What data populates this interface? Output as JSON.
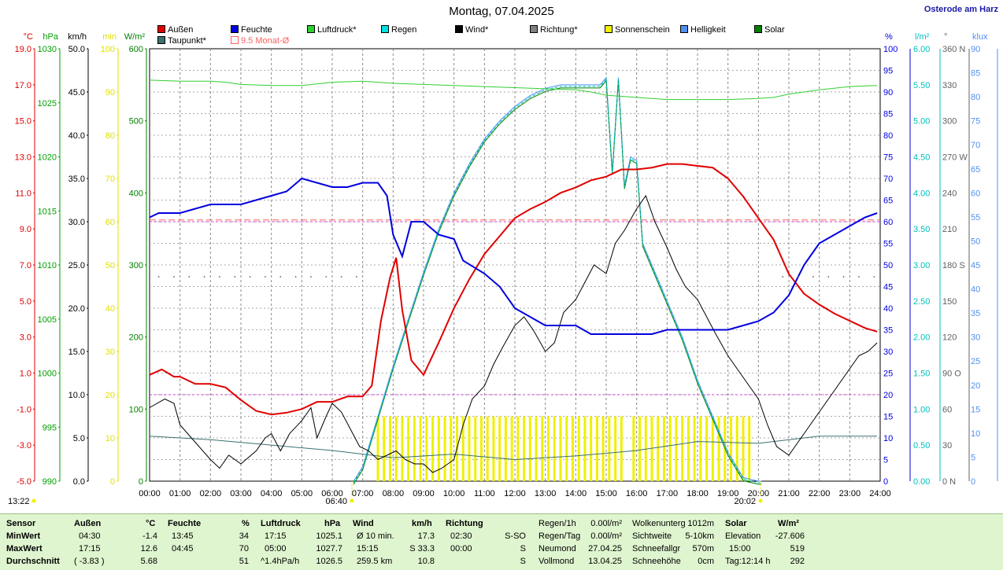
{
  "title": "Montag, 07.04.2025",
  "location": "Osterode am Harz",
  "legend": [
    {
      "label": "Außen",
      "color": "#e00000"
    },
    {
      "label": "Taupunkt*",
      "color": "#3b7070"
    },
    {
      "label": "Feuchte",
      "color": "#0000e0"
    },
    {
      "label": "9.5 Monat-Ø",
      "color": "#ff6060",
      "hollow": true
    },
    {
      "label": "Luftdruck*",
      "color": "#30d030"
    },
    {
      "label": "Regen",
      "color": "#00e0e0"
    },
    {
      "label": "Wind*",
      "color": "#000000"
    },
    {
      "label": "Richtung*",
      "color": "#808080"
    },
    {
      "label": "Sonnenschein",
      "color": "#f0f000"
    },
    {
      "label": "Helligkeit",
      "color": "#5090f0"
    },
    {
      "label": "Solar",
      "color": "#008000"
    }
  ],
  "axes_left": [
    {
      "unit": "°C",
      "color": "#e00000",
      "ticks": [
        "19.0",
        "17.0",
        "15.0",
        "13.0",
        "11.0",
        "9.0",
        "7.0",
        "5.0",
        "3.0",
        "1.0",
        "-1.0",
        "-3.0",
        "-5.0"
      ]
    },
    {
      "unit": "hPa",
      "color": "#00a000",
      "ticks": [
        "1030",
        "1025",
        "1020",
        "1015",
        "1010",
        "1005",
        "1000",
        "995",
        "990"
      ]
    },
    {
      "unit": "km/h",
      "color": "#000000",
      "ticks": [
        "50.0",
        "45.0",
        "40.0",
        "35.0",
        "30.0",
        "25.0",
        "20.0",
        "15.0",
        "10.0",
        "5.0",
        "0.0"
      ]
    },
    {
      "unit": "min",
      "color": "#e0e000",
      "ticks": [
        "100",
        "90",
        "80",
        "70",
        "60",
        "50",
        "40",
        "30",
        "20",
        "10",
        "0"
      ]
    },
    {
      "unit": "W/m²",
      "color": "#008000",
      "ticks": [
        "600",
        "500",
        "400",
        "300",
        "200",
        "100",
        "0"
      ]
    }
  ],
  "axes_right": [
    {
      "unit": "%",
      "color": "#0000e0",
      "ticks": [
        "100",
        "95",
        "90",
        "85",
        "80",
        "75",
        "70",
        "65",
        "60",
        "55",
        "50",
        "45",
        "40",
        "35",
        "30",
        "25",
        "20",
        "15",
        "10",
        "5",
        "0"
      ]
    },
    {
      "unit": "l/m²",
      "color": "#00c0c0",
      "ticks": [
        "6.00",
        "5.50",
        "5.00",
        "4.50",
        "4.00",
        "3.50",
        "3.00",
        "2.50",
        "2.00",
        "1.50",
        "1.00",
        "0.50",
        "0.00"
      ]
    },
    {
      "unit": "°",
      "color": "#606060",
      "ticks": [
        "360 N",
        "330",
        "300",
        "270 W",
        "240",
        "210",
        "180 S",
        "150",
        "120",
        "90 O",
        "60",
        "30",
        "0 N"
      ]
    },
    {
      "unit": "klux",
      "color": "#5090f0",
      "ticks": [
        "90",
        "85",
        "80",
        "75",
        "70",
        "65",
        "60",
        "55",
        "50",
        "45",
        "40",
        "35",
        "30",
        "25",
        "20",
        "15",
        "10",
        "5",
        "0"
      ]
    }
  ],
  "time_ticks": [
    "00:00",
    "01:00",
    "02:00",
    "03:00",
    "04:00",
    "05:00",
    "06:00",
    "07:00",
    "08:00",
    "09:00",
    "10:00",
    "11:00",
    "12:00",
    "13:00",
    "14:00",
    "15:00",
    "16:00",
    "17:00",
    "18:00",
    "19:00",
    "20:00",
    "21:00",
    "22:00",
    "23:00",
    "24:00"
  ],
  "markers": {
    "now": "13:22",
    "sunrise": "06:40",
    "sunset": "20:02"
  },
  "chart_data": {
    "type": "line",
    "x_unit": "hours",
    "xlim": [
      0,
      24
    ],
    "series": [
      {
        "name": "Außen",
        "unit": "°C",
        "ylim": [
          -5,
          19
        ],
        "color": "#e00000",
        "x": [
          0,
          0.4,
          0.8,
          1,
          1.5,
          2,
          2.5,
          3,
          3.5,
          4,
          4.5,
          5,
          5.5,
          6,
          6.5,
          7,
          7.3,
          7.6,
          7.9,
          8.1,
          8.3,
          8.6,
          9,
          9.5,
          10,
          10.5,
          11,
          11.5,
          12,
          12.5,
          13,
          13.5,
          14,
          14.5,
          15,
          15.5,
          16,
          16.5,
          17,
          17.5,
          18,
          18.5,
          19,
          19.5,
          20,
          20.5,
          21,
          21.5,
          22,
          22.5,
          23,
          23.5,
          23.9
        ],
        "y": [
          0.9,
          1.2,
          0.8,
          0.8,
          0.4,
          0.4,
          0.2,
          -0.5,
          -1.1,
          -1.3,
          -1.2,
          -1.0,
          -0.6,
          -0.6,
          -0.3,
          -0.3,
          0.3,
          3.9,
          6.3,
          7.4,
          4.5,
          1.7,
          0.9,
          2.7,
          4.6,
          6.2,
          7.6,
          8.6,
          9.6,
          10.1,
          10.5,
          11.0,
          11.3,
          11.7,
          11.9,
          12.3,
          12.3,
          12.4,
          12.6,
          12.6,
          12.5,
          12.4,
          11.8,
          10.8,
          9.6,
          8.4,
          6.5,
          5.4,
          4.8,
          4.3,
          3.9,
          3.5,
          3.3
        ]
      },
      {
        "name": "Feuchte",
        "unit": "%",
        "ylim": [
          0,
          100
        ],
        "color": "#0000e0",
        "x": [
          0,
          0.3,
          0.8,
          1,
          1.5,
          2,
          2.5,
          3,
          3.5,
          4,
          4.5,
          5,
          5.5,
          6,
          6.5,
          7,
          7.5,
          7.8,
          8,
          8.3,
          8.6,
          9,
          9.5,
          10,
          10.3,
          11,
          11.5,
          12,
          12.5,
          13,
          13.5,
          14,
          14.5,
          15,
          15.5,
          16,
          16.5,
          17,
          17.5,
          18,
          18.5,
          19,
          19.5,
          20,
          20.5,
          21,
          21.5,
          22,
          22.5,
          23,
          23.5,
          23.9
        ],
        "y": [
          61,
          62,
          62,
          62,
          63,
          64,
          64,
          64,
          65,
          66,
          67,
          70,
          69,
          68,
          68,
          69,
          69,
          66,
          57,
          52,
          60,
          60,
          57,
          56,
          51,
          48,
          45,
          40,
          38,
          36,
          36,
          36,
          34,
          34,
          34,
          34,
          34,
          35,
          35,
          35,
          35,
          35,
          36,
          37,
          39,
          43,
          50,
          55,
          57,
          59,
          61,
          62
        ]
      },
      {
        "name": "Taupunkt*",
        "unit": "°C",
        "ylim": [
          -5,
          19
        ],
        "color": "#3b7070",
        "x": [
          0,
          2,
          4,
          6,
          8,
          10,
          12,
          14,
          16,
          18,
          20,
          22,
          23.9
        ],
        "y": [
          -2.5,
          -2.7,
          -3.0,
          -3.3,
          -3.7,
          -3.5,
          -3.8,
          -3.6,
          -3.3,
          -2.8,
          -2.9,
          -2.5,
          -2.5
        ]
      },
      {
        "name": "Luftdruck*",
        "unit": "hPa",
        "ylim": [
          990,
          1030
        ],
        "color": "#30d030",
        "x": [
          0,
          1,
          2,
          2.5,
          3,
          4,
          5,
          6,
          7,
          8,
          9,
          10,
          11,
          12,
          13,
          14,
          14.5,
          15,
          16,
          17,
          18,
          19,
          20,
          20.5,
          21,
          22,
          23,
          23.9
        ],
        "y": [
          1027.1,
          1027.0,
          1027.0,
          1026.9,
          1026.7,
          1026.6,
          1026.6,
          1026.9,
          1027.0,
          1026.8,
          1026.7,
          1026.6,
          1026.5,
          1026.4,
          1026.3,
          1026.2,
          1026.0,
          1025.7,
          1025.5,
          1025.3,
          1025.3,
          1025.3,
          1025.4,
          1025.5,
          1025.8,
          1026.2,
          1026.5,
          1026.6
        ]
      },
      {
        "name": "Wind*",
        "unit": "km/h",
        "ylim": [
          0,
          50
        ],
        "color": "#000000",
        "x": [
          0,
          0.5,
          0.8,
          1,
          1.5,
          2,
          2.3,
          2.6,
          3,
          3.5,
          3.8,
          4,
          4.3,
          4.6,
          5,
          5.3,
          5.5,
          5.8,
          6,
          6.3,
          6.6,
          6.9,
          7.2,
          7.5,
          7.8,
          8.1,
          8.4,
          8.7,
          9,
          9.3,
          9.6,
          10,
          10.3,
          10.6,
          11,
          11.3,
          11.6,
          12,
          12.3,
          12.6,
          13,
          13.3,
          13.6,
          14,
          14.3,
          14.6,
          15,
          15.3,
          15.6,
          16,
          16.3,
          16.6,
          17,
          17.3,
          17.6,
          18,
          18.3,
          18.6,
          19,
          19.3,
          19.6,
          20,
          20.3,
          20.6,
          21,
          21.3,
          21.6,
          22,
          22.3,
          22.6,
          23,
          23.3,
          23.6,
          23.9
        ],
        "y": [
          8.5,
          9.5,
          9.0,
          6.5,
          4.5,
          2.5,
          1.5,
          3.0,
          2.0,
          3.5,
          5.0,
          5.5,
          3.5,
          5.5,
          7.0,
          8.5,
          5.0,
          7.5,
          9.0,
          8.0,
          6.0,
          4.0,
          3.5,
          2.5,
          3.0,
          3.5,
          2.5,
          2.0,
          2.0,
          1.0,
          1.5,
          2.5,
          6.5,
          9.5,
          11.0,
          13.5,
          15.5,
          18.0,
          19.0,
          17.5,
          15.0,
          16.0,
          19.5,
          21.0,
          23.0,
          25.0,
          24.0,
          27.5,
          29.0,
          31.5,
          33.0,
          30.0,
          27.0,
          24.5,
          22.5,
          21.0,
          19.0,
          17.0,
          14.5,
          13.0,
          11.5,
          9.5,
          6.5,
          4.0,
          3.0,
          4.5,
          6.0,
          8.0,
          9.5,
          11.0,
          13.0,
          14.5,
          15.0,
          16.0
        ]
      }
    ],
    "bars": [
      {
        "name": "Sonnenschein",
        "unit": "min",
        "ylim": [
          0,
          100
        ],
        "color": "#f0f000",
        "x": [
          7.5,
          7.7,
          7.9,
          8.1,
          8.3,
          8.5,
          8.7,
          8.9,
          9.1,
          9.3,
          9.5,
          9.7,
          9.9,
          10.1,
          10.3,
          10.5,
          10.7,
          10.9,
          11.1,
          11.3,
          11.5,
          11.7,
          11.9,
          12.1,
          12.3,
          12.5,
          12.7,
          12.9,
          13.1,
          13.3,
          13.5,
          13.7,
          13.9,
          14.1,
          14.3,
          14.5,
          14.7,
          14.9,
          15.1,
          15.3,
          15.5,
          15.9,
          16.1,
          16.3,
          16.5,
          16.7,
          16.9,
          17.1,
          17.3,
          17.5,
          17.7,
          17.9,
          18.1,
          18.3,
          18.5,
          18.7,
          18.9,
          19.1,
          19.3,
          19.5,
          19.7
        ],
        "values": [
          15,
          15,
          15,
          15,
          15,
          15,
          15,
          15,
          15,
          15,
          15,
          15,
          15,
          15,
          15,
          15,
          15,
          15,
          15,
          15,
          15,
          15,
          15,
          15,
          15,
          15,
          15,
          15,
          15,
          15,
          15,
          15,
          15,
          15,
          15,
          15,
          15,
          15,
          15,
          15,
          15,
          15,
          15,
          15,
          15,
          15,
          15,
          15,
          15,
          15,
          15,
          15,
          15,
          15,
          15,
          15,
          15,
          15,
          15,
          15,
          15
        ]
      }
    ],
    "solar": {
      "name": "Solar",
      "unit": "W/m²",
      "ylim": [
        0,
        600
      ],
      "x": [
        6.7,
        7,
        7.5,
        8,
        8.5,
        9,
        9.5,
        10,
        10.5,
        11,
        11.5,
        12,
        12.5,
        13,
        13.5,
        14,
        14.5,
        14.8,
        15.0,
        15.2,
        15.4,
        15.6,
        15.8,
        16.0,
        16.2,
        16.5,
        17,
        17.5,
        18,
        18.5,
        19,
        19.5,
        20,
        20.1
      ],
      "y": [
        0,
        20,
        90,
        160,
        225,
        290,
        350,
        400,
        440,
        475,
        500,
        520,
        535,
        545,
        550,
        550,
        550,
        550,
        560,
        430,
        560,
        410,
        450,
        445,
        330,
        300,
        250,
        200,
        140,
        90,
        40,
        5,
        0,
        0
      ]
    },
    "reference_lines": [
      {
        "label": "9.5 Monat-Ø",
        "unit": "°C",
        "value": 9.5,
        "color": "#ff6060"
      }
    ]
  },
  "stats": {
    "headers": {
      "sensor": "Sensor",
      "aussen": "Außen",
      "aussen_unit": "°C",
      "feuchte": "Feuchte",
      "feuchte_unit": "%",
      "luftdruck": "Luftdruck",
      "luftdruck_unit": "hPa",
      "wind": "Wind",
      "wind_unit": "km/h",
      "richtung": "Richtung",
      "solar": "Solar",
      "solar_unit": "W/m²"
    },
    "row_labels": [
      "MinWert",
      "MaxWert",
      "Durchschnitt"
    ],
    "aussen": [
      [
        "04:30",
        "-1.4"
      ],
      [
        "17:15",
        "12.6"
      ],
      [
        "( -3.83 )",
        "5.68"
      ]
    ],
    "feuchte": [
      [
        "13:45",
        "34"
      ],
      [
        "04:45",
        "70"
      ],
      [
        "",
        "51"
      ]
    ],
    "luftdruck": [
      [
        "17:15",
        "1025.1"
      ],
      [
        "05:00",
        "1027.7"
      ],
      [
        "^1.4hPa/h",
        "1026.5"
      ]
    ],
    "wind": [
      [
        "Ø 10 min.",
        "17.3"
      ],
      [
        "15:15",
        "S 33.3"
      ],
      [
        "259.5 km",
        "10.8"
      ]
    ],
    "richtung": [
      [
        "02:30",
        "S-SO"
      ],
      [
        "00:00",
        "S"
      ],
      [
        "",
        "S"
      ]
    ],
    "regen": [
      [
        "Regen/1h",
        "0.00l/m²"
      ],
      [
        "Regen/Tag",
        "0.00l/m²"
      ],
      [
        "Neumond",
        "27.04.25"
      ],
      [
        "Vollmond",
        "13.04.25"
      ]
    ],
    "wolken": [
      [
        "Wolkenunterg",
        "1012m"
      ],
      [
        "Sichtweite",
        "5-10km"
      ],
      [
        "Schneefallgr",
        "570m"
      ],
      [
        "Schneehöhe",
        "0cm"
      ]
    ],
    "solar_rows": [
      [
        "Elevation",
        "-27.606"
      ],
      [
        "15:00",
        "519"
      ],
      [
        "Tag:12:14 h",
        "292"
      ]
    ]
  }
}
